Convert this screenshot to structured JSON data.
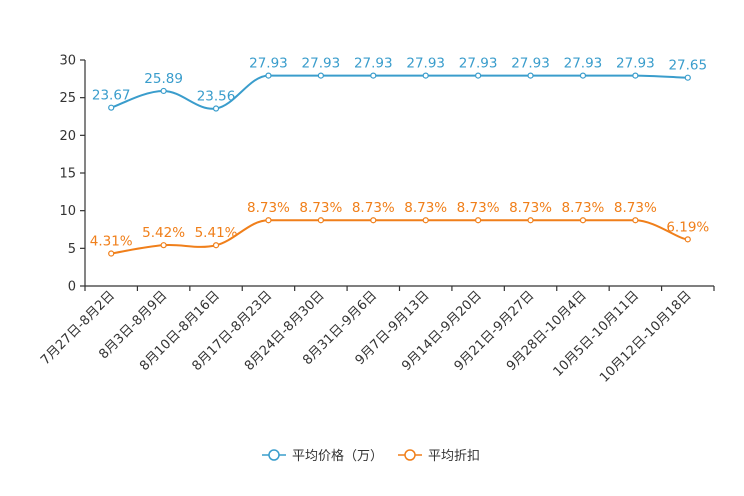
{
  "chart_data": {
    "type": "line",
    "title": "",
    "xlabel": "",
    "ylabel": "",
    "ylim": [
      0,
      30
    ],
    "yticks": [
      0,
      5,
      10,
      15,
      20,
      25,
      30
    ],
    "categories": [
      "7月27日-8月2日",
      "8月3日-8月9日",
      "8月10日-8月16日",
      "8月17日-8月23日",
      "8月24日-8月30日",
      "8月31日-9月6日",
      "9月7日-9月13日",
      "9月14日-9月20日",
      "9月21日-9月27日",
      "9月28日-10月4日",
      "10月5日-10月11日",
      "10月12日-10月18日"
    ],
    "series": [
      {
        "name": "平均价格（万）",
        "color": "#3a9dcc",
        "values": [
          23.67,
          25.89,
          23.56,
          27.93,
          27.93,
          27.93,
          27.93,
          27.93,
          27.93,
          27.93,
          27.93,
          27.65
        ],
        "labels": [
          "23.67",
          "25.89",
          "23.56",
          "27.93",
          "27.93",
          "27.93",
          "27.93",
          "27.93",
          "27.93",
          "27.93",
          "27.93",
          "27.65"
        ]
      },
      {
        "name": "平均折扣",
        "color": "#f07f1a",
        "values": [
          4.31,
          5.42,
          5.41,
          8.73,
          8.73,
          8.73,
          8.73,
          8.73,
          8.73,
          8.73,
          8.73,
          6.19
        ],
        "labels": [
          "4.31%",
          "5.42%",
          "5.41%",
          "8.73%",
          "8.73%",
          "8.73%",
          "8.73%",
          "8.73%",
          "8.73%",
          "8.73%",
          "8.73%",
          "6.19%"
        ]
      }
    ],
    "legend": "bottom-center",
    "grid": false
  }
}
